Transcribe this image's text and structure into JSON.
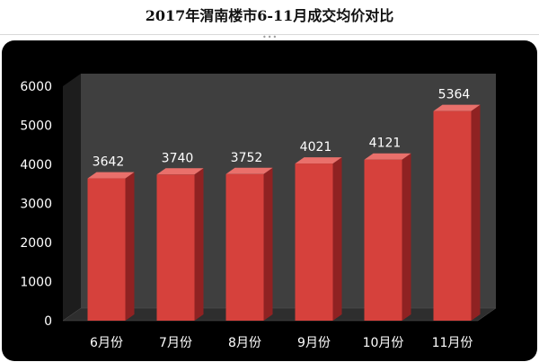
{
  "title": "2017年渭南楼市6-11月成交均价对比",
  "chart_data": {
    "type": "bar",
    "title": "2017年渭南楼市6-11月成交均价对比",
    "categories": [
      "6月份",
      "7月份",
      "8月份",
      "9月份",
      "10月份",
      "11月份"
    ],
    "values": [
      3642,
      3740,
      3752,
      4021,
      4121,
      5364
    ],
    "data_labels": [
      "3642",
      "3740",
      "3752",
      "4021",
      "4121",
      "5364"
    ],
    "ylim": [
      0,
      6000
    ],
    "yticks": [
      "0",
      "1000",
      "2000",
      "3000",
      "4000",
      "5000",
      "6000"
    ],
    "xlabel": "",
    "ylabel": "",
    "grid": false,
    "legend": "none",
    "style": "3d-column",
    "colors": {
      "background": "#000000",
      "back_wall": "#3f3f3f",
      "floor": "#2e2e2e",
      "bar_front": "#d6413c",
      "bar_side": "#8f2222",
      "bar_top": "#e9706b",
      "text": "#ffffff"
    }
  }
}
